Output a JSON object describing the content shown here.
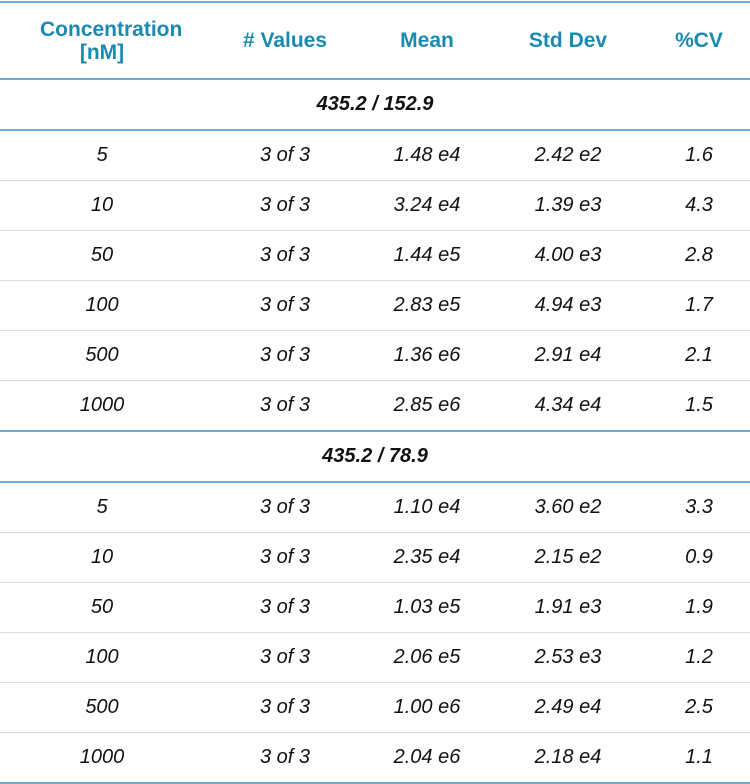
{
  "headers": [
    "Concentration [nM]",
    "# Values",
    "Mean",
    "Std Dev",
    "%CV"
  ],
  "groups": [
    {
      "label": "435.2 / 152.9",
      "rows": [
        [
          "5",
          "3 of 3",
          "1.48 e4",
          "2.42 e2",
          "1.6"
        ],
        [
          "10",
          "3 of 3",
          "3.24 e4",
          "1.39 e3",
          "4.3"
        ],
        [
          "50",
          "3 of 3",
          "1.44 e5",
          "4.00 e3",
          "2.8"
        ],
        [
          "100",
          "3 of 3",
          "2.83 e5",
          "4.94 e3",
          "1.7"
        ],
        [
          "500",
          "3 of 3",
          "1.36 e6",
          "2.91 e4",
          "2.1"
        ],
        [
          "1000",
          "3 of 3",
          "2.85 e6",
          "4.34 e4",
          "1.5"
        ]
      ]
    },
    {
      "label": "435.2 / 78.9",
      "rows": [
        [
          "5",
          "3 of 3",
          "1.10 e4",
          "3.60 e2",
          "3.3"
        ],
        [
          "10",
          "3 of 3",
          "2.35 e4",
          "2.15 e2",
          "0.9"
        ],
        [
          "50",
          "3 of 3",
          "1.03 e5",
          "1.91 e3",
          "1.9"
        ],
        [
          "100",
          "3 of 3",
          "2.06 e5",
          "2.53 e3",
          "1.2"
        ],
        [
          "500",
          "3 of 3",
          "1.00 e6",
          "2.49 e4",
          "2.5"
        ],
        [
          "1000",
          "3 of 3",
          "2.04 e6",
          "2.18 e4",
          "1.1"
        ]
      ]
    }
  ]
}
